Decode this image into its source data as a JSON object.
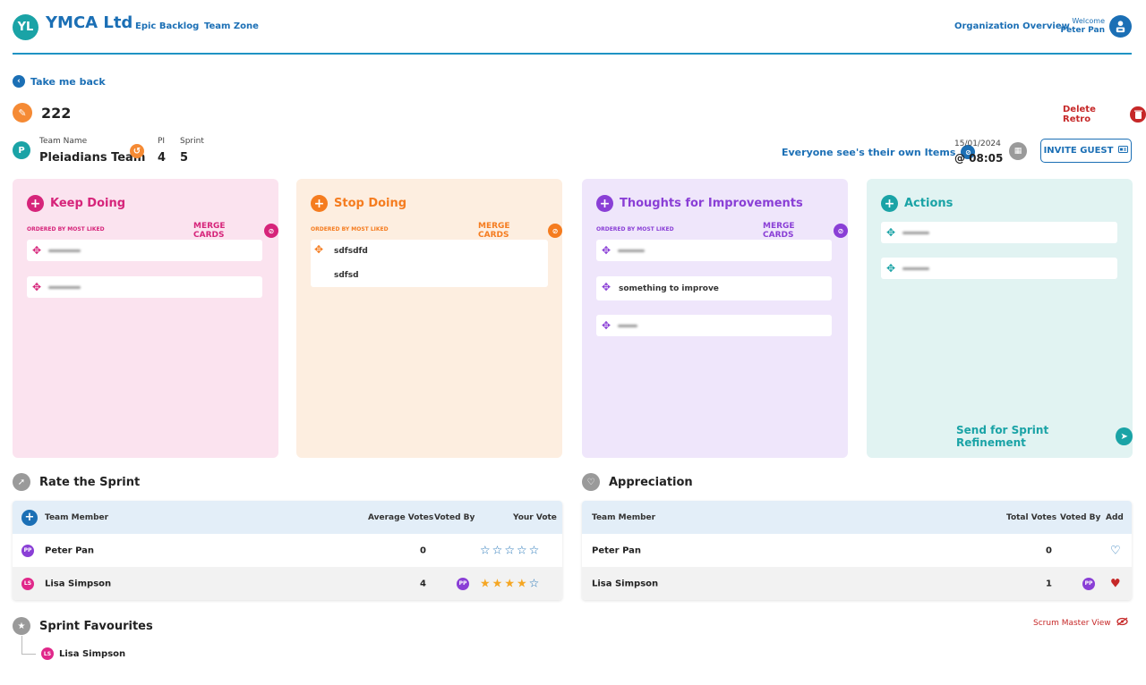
{
  "header": {
    "logo_initials": "YL",
    "app_name": "YMCA Ltd",
    "nav": [
      "Epic Backlog",
      "Team Zone"
    ],
    "org_overview": "Organization Overview",
    "welcome_label": "Welcome",
    "user_name": "Peter Pan"
  },
  "back_link": "Take me back",
  "retro_title": "222",
  "delete_retro": "Delete Retro",
  "team": {
    "badge": "P",
    "team_name_label": "Team Name",
    "team_name": "Pleiadians Team",
    "pi_label": "PI",
    "pi_value": "4",
    "sprint_label": "Sprint",
    "sprint_value": "5"
  },
  "visibility_text": "Everyone see's their own Items",
  "date": "15/01/2024",
  "time": "@ 08:05",
  "invite_guest": "INVITE GUEST",
  "columns": {
    "keep": {
      "title": "Keep Doing",
      "ordered": "ORDERED BY MOST LIKED",
      "merge": "MERGE CARDS",
      "color": "#d6247a",
      "bg": "#fbe3ef"
    },
    "stop": {
      "title": "Stop Doing",
      "ordered": "ORDERED BY MOST LIKED",
      "merge": "MERGE CARDS",
      "color": "#f57c1f",
      "bg": "#fdeee0",
      "card_items": [
        "sdfsdfd",
        "sdfsd"
      ]
    },
    "thoughts": {
      "title": "Thoughts for Improvements",
      "ordered": "ORDERED BY MOST LIKED",
      "merge": "MERGE CARDS",
      "color": "#8a3fd6",
      "bg": "#efe6fb",
      "card_text": "something to improve"
    },
    "actions": {
      "title": "Actions",
      "color": "#1aa3a6",
      "bg": "#e1f3f2",
      "send": "Send for Sprint Refinement"
    }
  },
  "rate_sprint": {
    "title": "Rate the Sprint",
    "headers": {
      "member": "Team Member",
      "avg": "Average Votes",
      "voted_by": "Voted By",
      "your_vote": "Your Vote"
    },
    "rows": [
      {
        "initials": "PP",
        "name": "Peter Pan",
        "avg": "0",
        "voter": "",
        "stars": 0
      },
      {
        "initials": "LS",
        "name": "Lisa Simpson",
        "avg": "4",
        "voter": "PP",
        "stars": 4
      }
    ]
  },
  "appreciation": {
    "title": "Appreciation",
    "headers": {
      "member": "Team Member",
      "total": "Total Votes",
      "voted_by": "Voted By",
      "add": "Add"
    },
    "rows": [
      {
        "name": "Peter Pan",
        "total": "0",
        "voter": ""
      },
      {
        "name": "Lisa Simpson",
        "total": "1",
        "voter": "PP"
      }
    ]
  },
  "favourites": {
    "title": "Sprint Favourites",
    "initials": "LS",
    "name": "Lisa Simpson"
  },
  "scrum_master_view": "Scrum Master View"
}
